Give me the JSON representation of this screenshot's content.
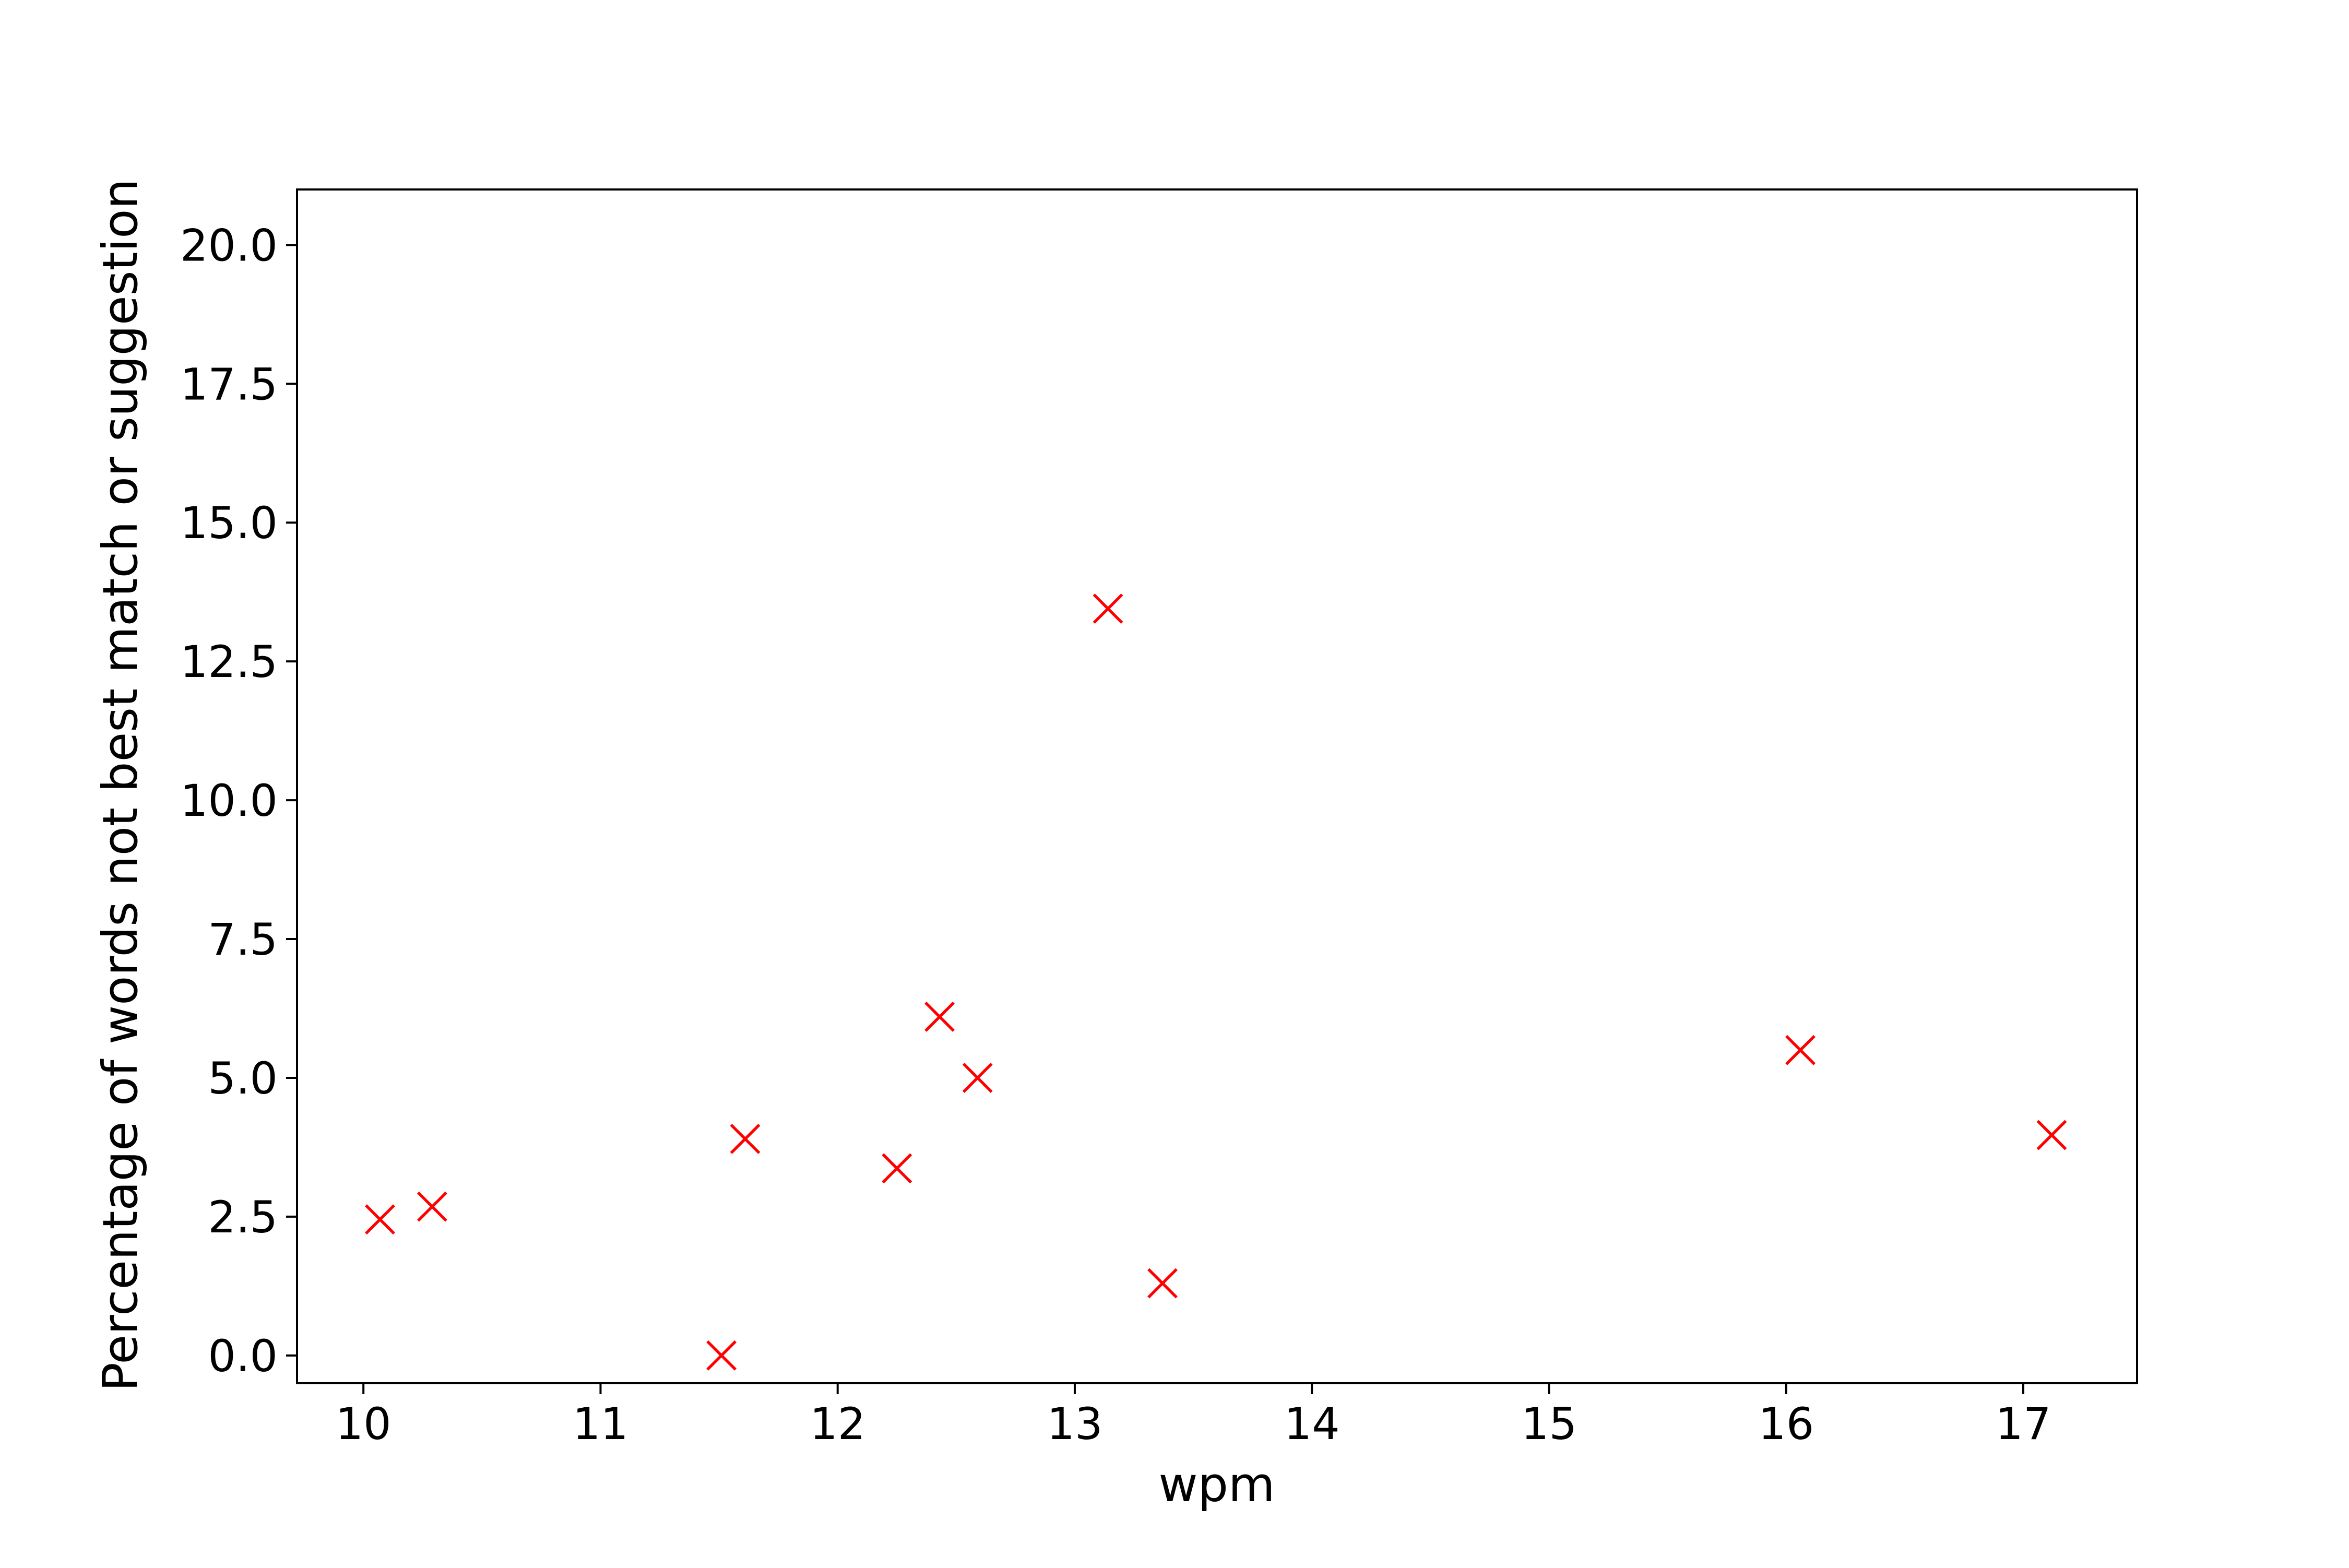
{
  "chart_data": {
    "type": "scatter",
    "title": "",
    "xlabel": "wpm",
    "ylabel": "Percentage of words not best match or suggestion",
    "xlim": [
      9.72,
      17.48
    ],
    "ylim": [
      -0.5,
      21.0
    ],
    "x_ticks": [
      10,
      11,
      12,
      13,
      14,
      15,
      16,
      17
    ],
    "y_ticks": [
      0.0,
      2.5,
      5.0,
      7.5,
      10.0,
      12.5,
      15.0,
      17.5,
      20.0
    ],
    "x_tick_labels": [
      "10",
      "11",
      "12",
      "13",
      "14",
      "15",
      "16",
      "17"
    ],
    "y_tick_labels": [
      "0.0",
      "2.5",
      "5.0",
      "7.5",
      "10.0",
      "12.5",
      "15.0",
      "17.5",
      "20.0"
    ],
    "grid": false,
    "legend": "none",
    "marker": "x",
    "marker_color": "#ff0000",
    "series": [
      {
        "points": [
          {
            "x": 10.07,
            "y": 2.45
          },
          {
            "x": 10.29,
            "y": 2.68
          },
          {
            "x": 11.51,
            "y": 0.0
          },
          {
            "x": 11.61,
            "y": 3.9
          },
          {
            "x": 12.25,
            "y": 3.37
          },
          {
            "x": 12.43,
            "y": 6.1
          },
          {
            "x": 12.59,
            "y": 5.0
          },
          {
            "x": 13.14,
            "y": 13.45
          },
          {
            "x": 13.37,
            "y": 1.3
          },
          {
            "x": 16.06,
            "y": 5.5
          },
          {
            "x": 17.12,
            "y": 3.97
          }
        ]
      }
    ]
  }
}
